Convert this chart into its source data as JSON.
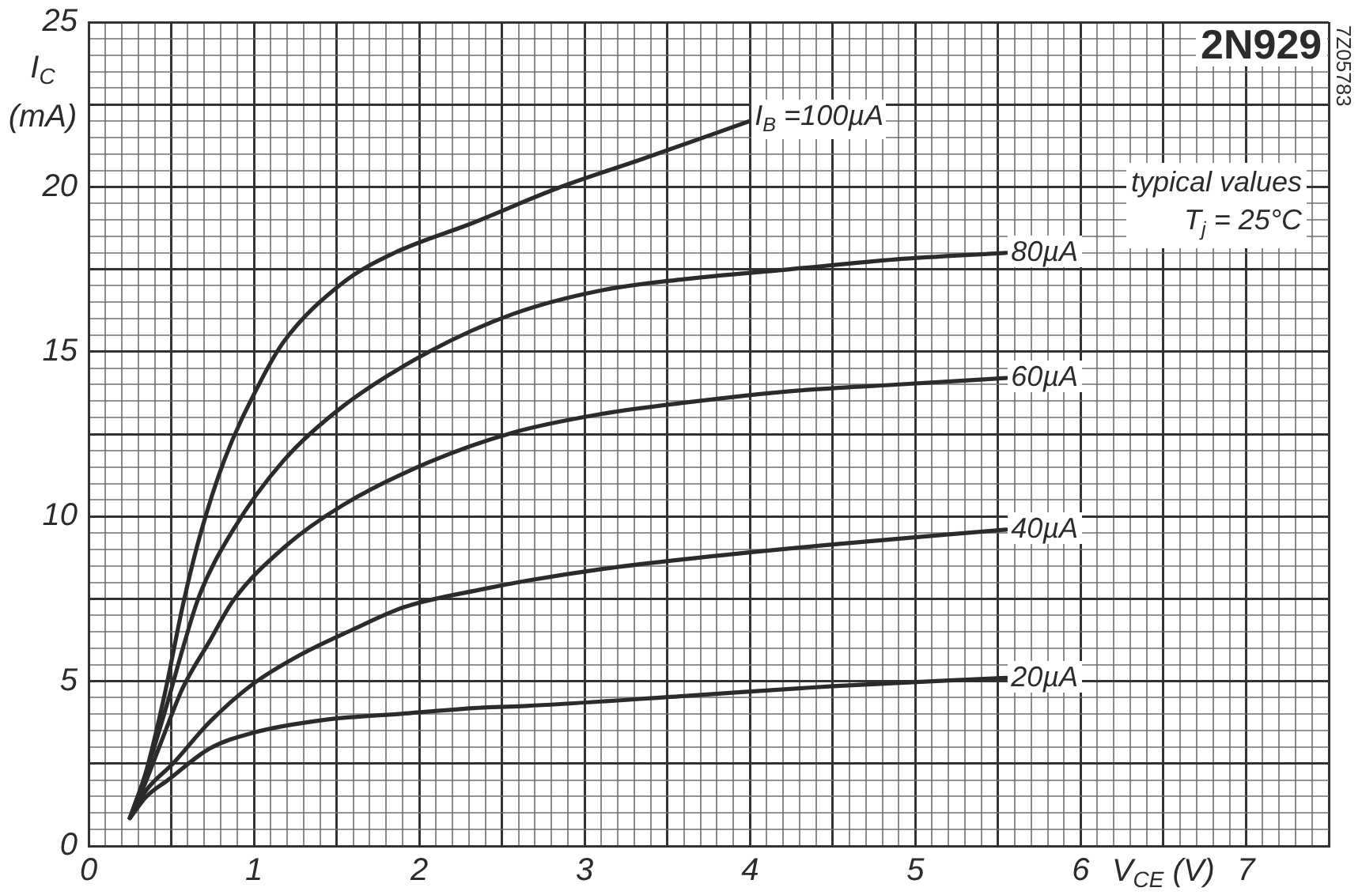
{
  "chart_data": {
    "type": "line",
    "title": "2N929",
    "xlabel": "V$_{CE}$ (V)",
    "ylabel": "I$_{C}$ (mA)",
    "annotations": [
      "typical values",
      "T$_{j}$ = 25°C",
      "7Z05783"
    ],
    "xlim": [
      0,
      7.5
    ],
    "ylim": [
      0,
      25
    ],
    "xticks": [
      0,
      {
        "value": 0.1,
        "label": null
      },
      {
        "value": 0.2,
        "label": null
      },
      {
        "value": 0.3,
        "label": null
      },
      {
        "value": 0.4,
        "label": null
      },
      {
        "value": 0.5,
        "label": null
      },
      {
        "value": 0.6,
        "label": null
      },
      {
        "value": 0.7,
        "label": null
      },
      {
        "value": 0.8,
        "label": null
      },
      {
        "value": 0.9,
        "label": null
      },
      1,
      {
        "value": 1.1,
        "label": null
      },
      {
        "value": 1.2,
        "label": null
      },
      {
        "value": 1.3,
        "label": null
      },
      {
        "value": 1.4,
        "label": null
      },
      {
        "value": 1.5,
        "label": null
      },
      {
        "value": 1.6,
        "label": null
      },
      {
        "value": 1.7,
        "label": null
      },
      {
        "value": 1.8,
        "label": null
      },
      {
        "value": 1.9,
        "label": null
      },
      2,
      {
        "value": 2.1,
        "label": null
      },
      {
        "value": 2.2,
        "label": null
      },
      {
        "value": 2.3,
        "label": null
      },
      {
        "value": 2.4,
        "label": null
      },
      {
        "value": 2.5,
        "label": null
      },
      {
        "value": 2.6,
        "label": null
      },
      {
        "value": 2.7,
        "label": null
      },
      {
        "value": 2.8,
        "label": null
      },
      {
        "value": 2.9,
        "label": null
      },
      3,
      {
        "value": 3.1,
        "label": null
      },
      {
        "value": 3.2,
        "label": null
      },
      {
        "value": 3.3,
        "label": null
      },
      {
        "value": 3.4,
        "label": null
      },
      {
        "value": 3.5,
        "label": null
      },
      {
        "value": 3.6,
        "label": null
      },
      {
        "value": 3.7,
        "label": null
      },
      {
        "value": 3.8,
        "label": null
      },
      {
        "value": 3.9,
        "label": null
      },
      4,
      {
        "value": 4.1,
        "label": null
      },
      {
        "value": 4.2,
        "label": null
      },
      {
        "value": 4.3,
        "label": null
      },
      {
        "value": 4.4,
        "label": null
      },
      {
        "value": 4.5,
        "label": null
      },
      {
        "value": 4.6,
        "label": null
      },
      {
        "value": 4.7,
        "label": null
      },
      {
        "value": 4.8,
        "label": null
      },
      {
        "value": 4.9,
        "label": null
      },
      5,
      {
        "value": 5.1,
        "label": null
      },
      {
        "value": 5.2,
        "label": null
      },
      {
        "value": 5.3,
        "label": null
      },
      {
        "value": 5.4,
        "label": null
      },
      {
        "value": 5.5,
        "label": null
      },
      {
        "value": 5.6,
        "label": null
      },
      {
        "value": 5.7,
        "label": null
      },
      {
        "value": 5.8,
        "label": null
      },
      {
        "value": 5.9,
        "label": null
      },
      6,
      {
        "value": 6.1,
        "label": null
      },
      {
        "value": 6.2,
        "label": null
      },
      {
        "value": 6.3,
        "label": null
      },
      {
        "value": 6.4,
        "label": null
      },
      {
        "value": 6.5,
        "label": null
      },
      {
        "value": 6.6,
        "label": null
      },
      {
        "value": 6.7,
        "label": null
      },
      {
        "value": 6.8,
        "label": null
      },
      {
        "value": 6.9,
        "label": null
      },
      7,
      {
        "value": 7.1,
        "label": null
      },
      {
        "value": 7.2,
        "label": null
      },
      {
        "value": 7.3,
        "label": null
      },
      {
        "value": 7.4,
        "label": null
      },
      {
        "value": 7.5,
        "label": null
      }
    ],
    "yticks": [
      0,
      {
        "value": 0.5,
        "label": null
      },
      {
        "value": 1,
        "label": null
      },
      {
        "value": 1.5,
        "label": null
      },
      {
        "value": 2,
        "label": null
      },
      {
        "value": 2.5,
        "label": null
      },
      {
        "value": 3,
        "label": null
      },
      {
        "value": 3.5,
        "label": null
      },
      {
        "value": 4,
        "label": null
      },
      {
        "value": 4.5,
        "label": null
      },
      5,
      {
        "value": 5.5,
        "label": null
      },
      {
        "value": 6,
        "label": null
      },
      {
        "value": 6.5,
        "label": null
      },
      {
        "value": 7,
        "label": null
      },
      {
        "value": 7.5,
        "label": null
      },
      {
        "value": 8,
        "label": null
      },
      {
        "value": 8.5,
        "label": null
      },
      {
        "value": 9,
        "label": null
      },
      {
        "value": 9.5,
        "label": null
      },
      10,
      {
        "value": 10.5,
        "label": null
      },
      {
        "value": 11,
        "label": null
      },
      {
        "value": 11.5,
        "label": null
      },
      {
        "value": 12,
        "label": null
      },
      {
        "value": 12.5,
        "label": null
      },
      {
        "value": 13,
        "label": null
      },
      {
        "value": 13.5,
        "label": null
      },
      {
        "value": 14,
        "label": null
      },
      {
        "value": 14.5,
        "label": null
      },
      15,
      {
        "value": 15.5,
        "label": null
      },
      {
        "value": 16,
        "label": null
      },
      {
        "value": 16.5,
        "label": null
      },
      {
        "value": 17,
        "label": null
      },
      {
        "value": 17.5,
        "label": null
      },
      {
        "value": 18,
        "label": null
      },
      {
        "value": 18.5,
        "label": null
      },
      {
        "value": 19,
        "label": null
      },
      {
        "value": 19.5,
        "label": null
      },
      20,
      {
        "value": 20.5,
        "label": null
      },
      {
        "value": 21,
        "label": null
      },
      {
        "value": 21.5,
        "label": null
      },
      {
        "value": 22,
        "label": null
      },
      {
        "value": 22.5,
        "label": null
      },
      {
        "value": 23,
        "label": null
      },
      {
        "value": 23.5,
        "label": null
      },
      {
        "value": 24,
        "label": null
      },
      {
        "value": 24.5,
        "label": null
      },
      25
    ],
    "grid": true,
    "series": [
      {
        "name": "I$_{B}$ =100µA",
        "color": "#2b2b2b",
        "x": [
          0.25,
          0.35,
          0.46,
          0.57,
          0.67,
          0.82,
          1.03,
          1.18,
          1.54,
          1.85,
          2.32,
          2.83,
          3.35,
          4.0
        ],
        "values": [
          0.85,
          2.3,
          4.6,
          7.3,
          9.35,
          11.7,
          14.0,
          15.3,
          17.1,
          18.0,
          18.9,
          19.95,
          20.85,
          22.0
        ]
      },
      {
        "name": "80µA",
        "color": "#2b2b2b",
        "x": [
          0.25,
          0.36,
          0.48,
          0.57,
          0.67,
          0.875,
          1.18,
          1.54,
          2.06,
          2.57,
          3.09,
          3.6,
          4.24,
          4.88,
          5.55
        ],
        "values": [
          0.85,
          2.4,
          4.4,
          6.0,
          7.6,
          9.6,
          11.7,
          13.35,
          15.0,
          16.15,
          16.85,
          17.2,
          17.5,
          17.8,
          18.0
        ]
      },
      {
        "name": "60µA",
        "color": "#2b2b2b",
        "x": [
          0.25,
          0.35,
          0.45,
          0.57,
          0.73,
          0.875,
          1.18,
          1.54,
          2.06,
          2.57,
          3.09,
          3.6,
          4.24,
          4.88,
          5.55
        ],
        "values": [
          0.85,
          2.0,
          3.3,
          4.8,
          6.2,
          7.45,
          9.05,
          10.35,
          11.65,
          12.55,
          13.1,
          13.45,
          13.8,
          14.0,
          14.2
        ]
      },
      {
        "name": "40µA",
        "color": "#2b2b2b",
        "x": [
          0.25,
          0.35,
          0.51,
          0.73,
          0.99,
          1.28,
          1.59,
          1.91,
          2.39,
          2.65,
          3.1,
          3.6,
          4.5,
          5.55
        ],
        "values": [
          0.85,
          1.7,
          2.5,
          3.75,
          4.9,
          5.8,
          6.55,
          7.25,
          7.8,
          8.05,
          8.4,
          8.7,
          9.15,
          9.6
        ]
      },
      {
        "name": "20µA",
        "color": "#2b2b2b",
        "x": [
          0.25,
          0.35,
          0.48,
          0.73,
          0.99,
          1.43,
          1.91,
          2.39,
          2.65,
          3.6,
          4.5,
          5.55
        ],
        "values": [
          0.85,
          1.5,
          2.0,
          2.95,
          3.43,
          3.83,
          4.02,
          4.2,
          4.25,
          4.55,
          4.85,
          5.1
        ]
      }
    ]
  }
}
